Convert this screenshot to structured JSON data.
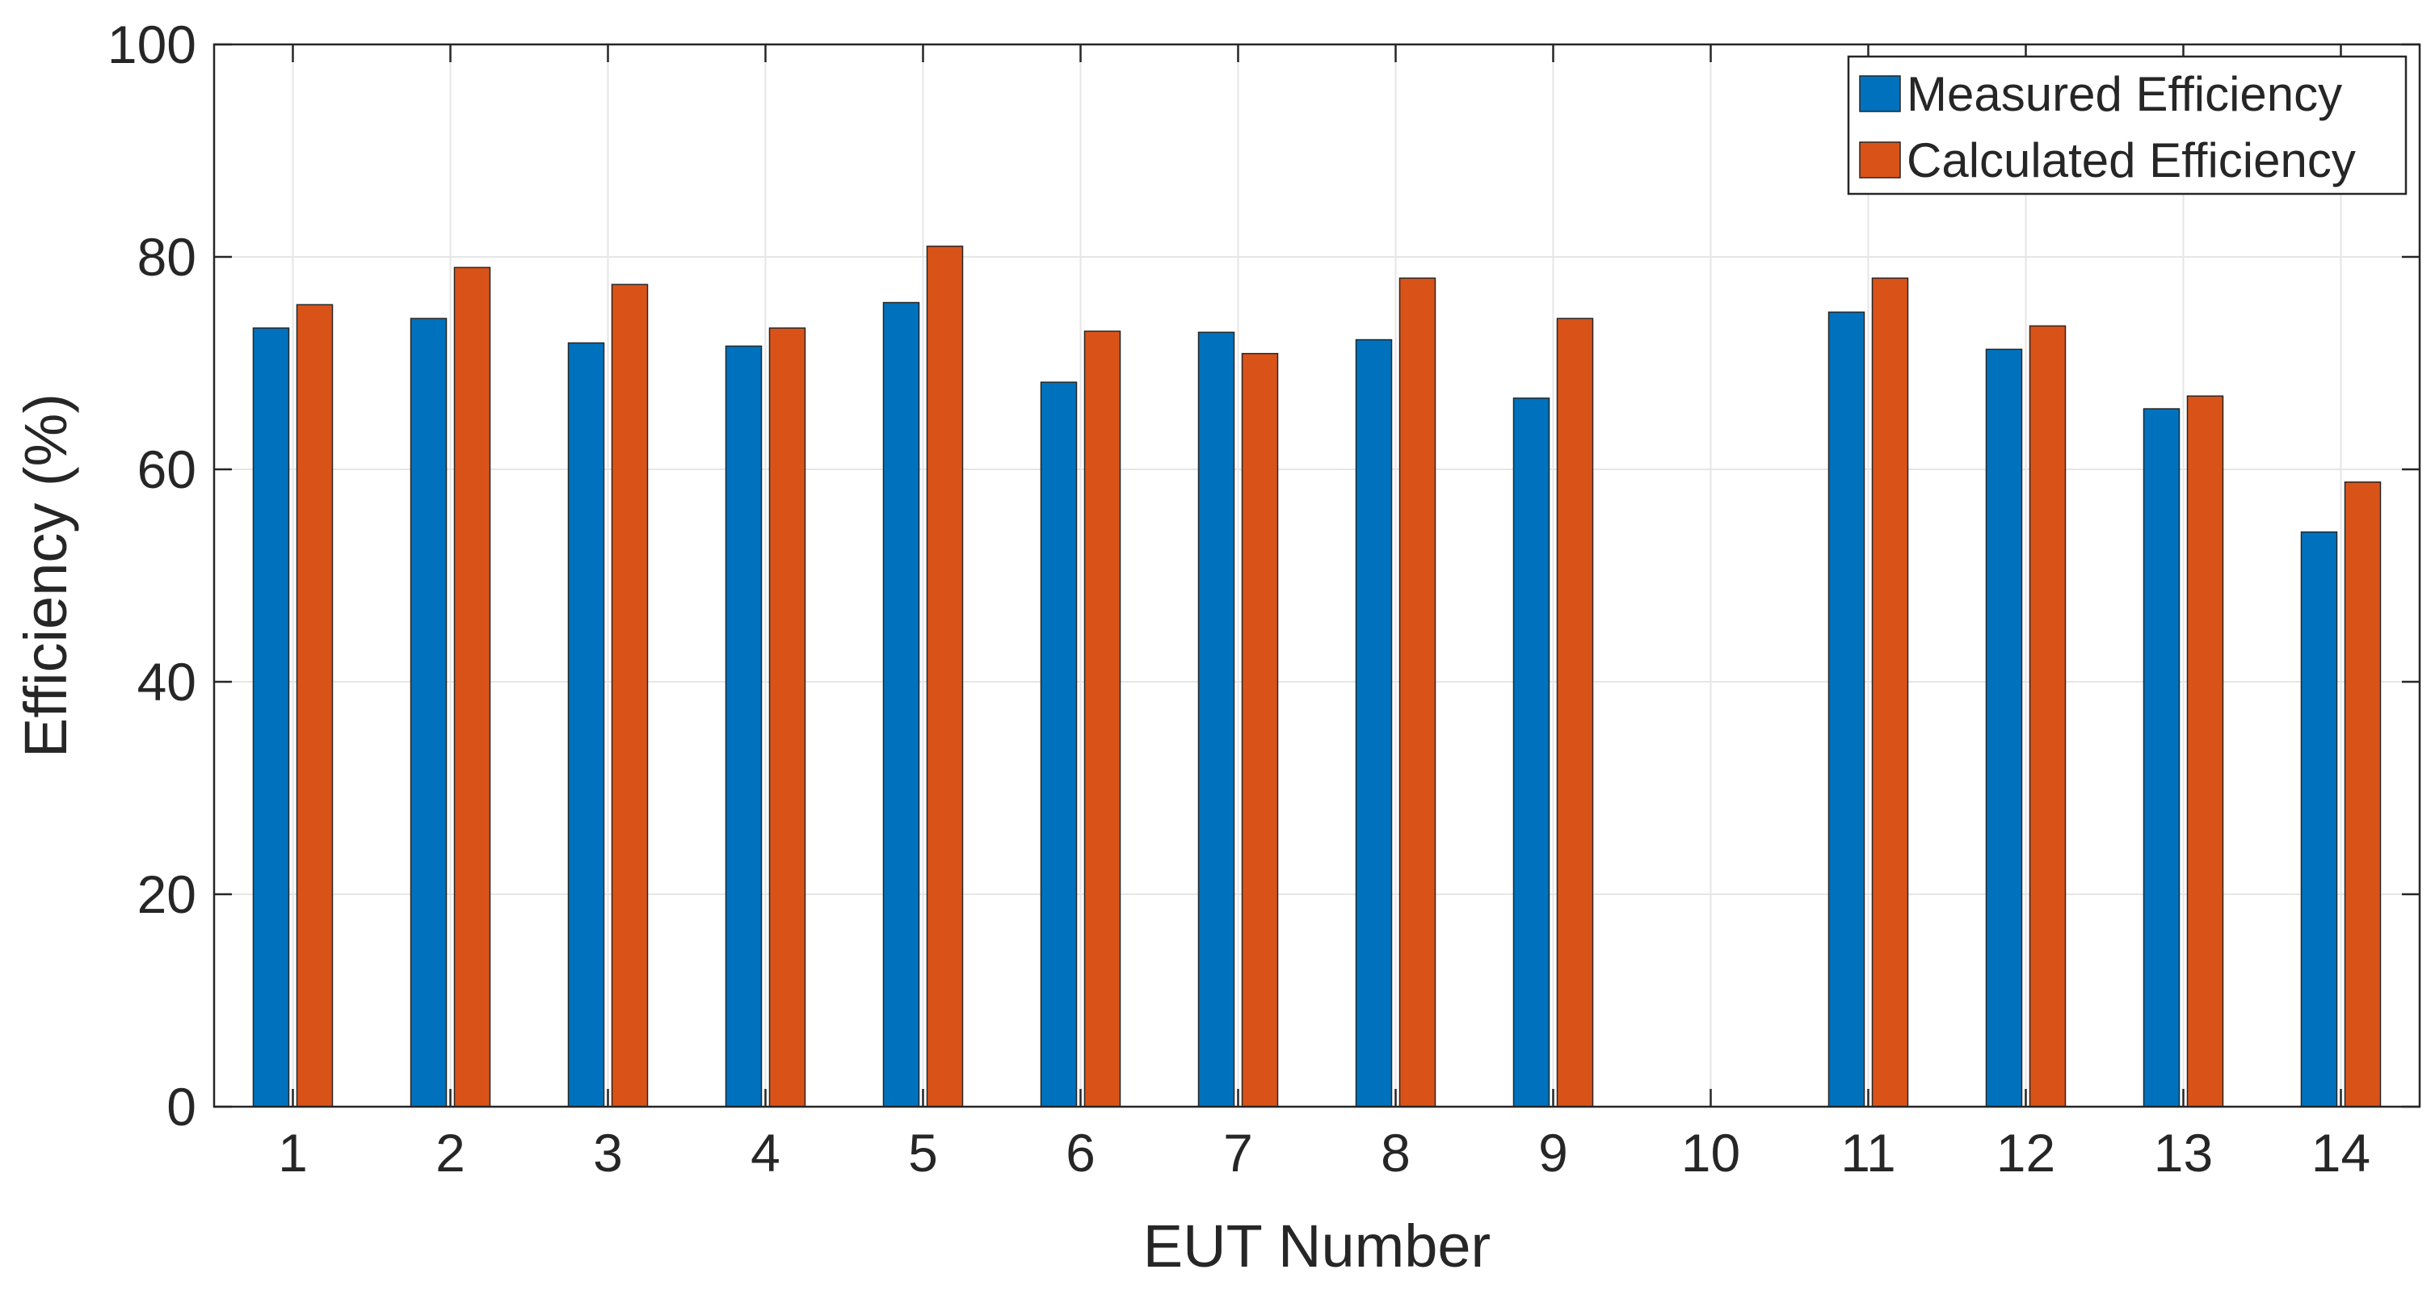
{
  "colors": {
    "measured": "#0072BD",
    "calculated": "#D95319",
    "grid": "#E6E6E6",
    "axis": "#262626",
    "background": "#FFFFFF"
  },
  "chart_data": {
    "type": "bar",
    "title": "",
    "xlabel": "EUT Number",
    "ylabel": "Efficiency (%)",
    "categories": [
      "1",
      "2",
      "3",
      "4",
      "5",
      "6",
      "7",
      "8",
      "9",
      "10",
      "11",
      "12",
      "13",
      "14"
    ],
    "series": [
      {
        "name": "Measured Efficiency",
        "color": "#0072BD",
        "values": [
          73.3,
          74.2,
          71.9,
          71.6,
          75.7,
          68.2,
          72.9,
          72.2,
          66.7,
          null,
          74.8,
          71.3,
          65.7,
          54.1
        ]
      },
      {
        "name": "Calculated Efficiency",
        "color": "#D95319",
        "values": [
          75.5,
          79.0,
          77.4,
          73.3,
          81.0,
          73.0,
          70.9,
          78.0,
          74.2,
          null,
          78.0,
          73.5,
          66.9,
          58.8
        ]
      }
    ],
    "ylim": [
      0,
      100
    ],
    "yticks": [
      0,
      20,
      40,
      60,
      80,
      100
    ],
    "grid": true,
    "legend_position": "top-right"
  }
}
